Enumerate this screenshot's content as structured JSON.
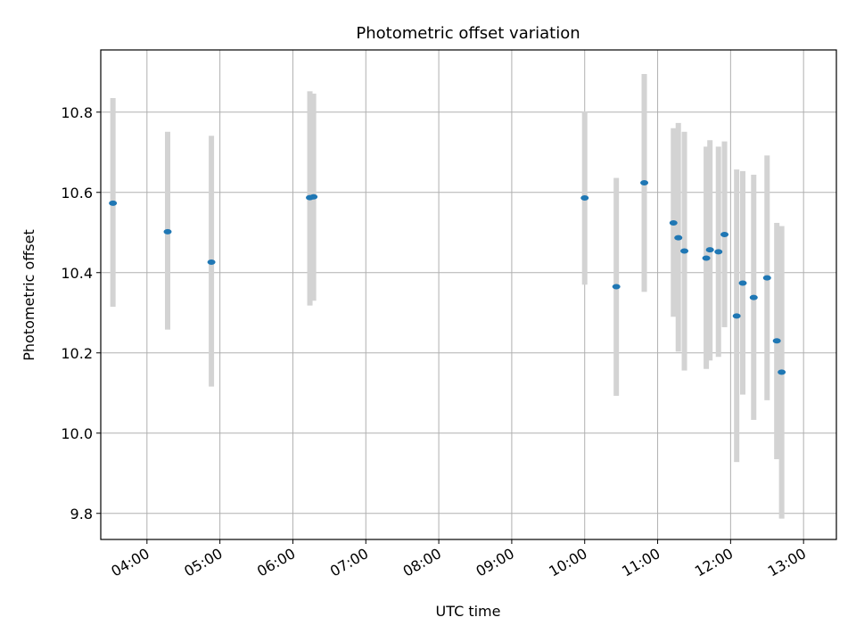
{
  "chart_data": {
    "type": "scatter",
    "title": "Photometric offset variation",
    "xlabel": "UTC time",
    "ylabel": "Photometric offset",
    "grid": true,
    "xlim": [
      "03:22",
      "13:27"
    ],
    "ylim": [
      9.735,
      10.955
    ],
    "x_ticks": [
      "04:00",
      "05:00",
      "06:00",
      "07:00",
      "08:00",
      "09:00",
      "10:00",
      "11:00",
      "12:00",
      "13:00"
    ],
    "y_ticks": [
      9.8,
      10.0,
      10.2,
      10.4,
      10.6,
      10.8
    ],
    "y_tick_labels": [
      "9.8",
      "10.0",
      "10.2",
      "10.4",
      "10.6",
      "10.8"
    ],
    "colors": {
      "point": "#1f77b4",
      "errorbar": "#d3d3d3",
      "grid": "#b0b0b0"
    },
    "points": [
      {
        "x": "03:32",
        "y": 10.573,
        "err_low": 10.315,
        "err_high": 10.835
      },
      {
        "x": "04:17",
        "y": 10.502,
        "err_low": 10.258,
        "err_high": 10.751
      },
      {
        "x": "04:53",
        "y": 10.426,
        "err_low": 10.116,
        "err_high": 10.741
      },
      {
        "x": "06:14",
        "y": 10.587,
        "err_low": 10.318,
        "err_high": 10.852
      },
      {
        "x": "06:17",
        "y": 10.589,
        "err_low": 10.33,
        "err_high": 10.846
      },
      {
        "x": "10:00",
        "y": 10.586,
        "err_low": 10.37,
        "err_high": 10.802
      },
      {
        "x": "10:26",
        "y": 10.365,
        "err_low": 10.093,
        "err_high": 10.636
      },
      {
        "x": "10:49",
        "y": 10.624,
        "err_low": 10.352,
        "err_high": 10.895
      },
      {
        "x": "11:13",
        "y": 10.524,
        "err_low": 10.29,
        "err_high": 10.76
      },
      {
        "x": "11:17",
        "y": 10.487,
        "err_low": 10.203,
        "err_high": 10.773
      },
      {
        "x": "11:22",
        "y": 10.454,
        "err_low": 10.156,
        "err_high": 10.751
      },
      {
        "x": "11:40",
        "y": 10.436,
        "err_low": 10.16,
        "err_high": 10.714
      },
      {
        "x": "11:43",
        "y": 10.457,
        "err_low": 10.181,
        "err_high": 10.73
      },
      {
        "x": "11:50",
        "y": 10.452,
        "err_low": 10.19,
        "err_high": 10.714
      },
      {
        "x": "11:55",
        "y": 10.495,
        "err_low": 10.264,
        "err_high": 10.727
      },
      {
        "x": "12:05",
        "y": 10.292,
        "err_low": 9.928,
        "err_high": 10.657
      },
      {
        "x": "12:10",
        "y": 10.374,
        "err_low": 10.096,
        "err_high": 10.653
      },
      {
        "x": "12:19",
        "y": 10.338,
        "err_low": 10.033,
        "err_high": 10.644
      },
      {
        "x": "12:30",
        "y": 10.387,
        "err_low": 10.082,
        "err_high": 10.692
      },
      {
        "x": "12:38",
        "y": 10.23,
        "err_low": 9.935,
        "err_high": 10.524
      },
      {
        "x": "12:42",
        "y": 10.152,
        "err_low": 9.787,
        "err_high": 10.516
      }
    ]
  }
}
